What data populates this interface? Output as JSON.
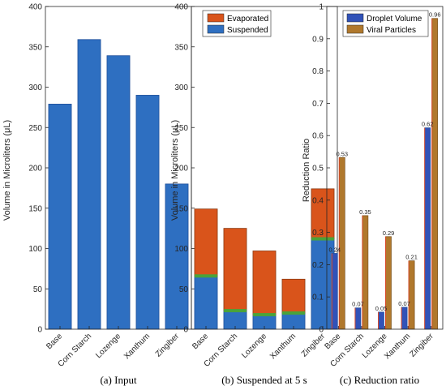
{
  "colors": {
    "blue": "#2e6fc1",
    "blue_edge": "#1f4f9a",
    "green": "#4aa33a",
    "evaporated": "#d9541b",
    "viral": "#b0782c",
    "droplet": "#3152b8",
    "viral_edge": "#7a5320"
  },
  "chart_data": [
    {
      "type": "bar",
      "categories": [
        "Base",
        "Corn Starch",
        "Lozenge",
        "Xanthum",
        "Zingiber"
      ],
      "values": [
        279,
        359,
        339,
        290,
        180
      ],
      "ylabel": "Volume in Microliters (μL)",
      "ylim": [
        0,
        400
      ],
      "yticks": [
        "0",
        "50",
        "100",
        "150",
        "200",
        "250",
        "300",
        "350",
        "400"
      ],
      "caption": "(a) Input"
    },
    {
      "type": "stacked-bar",
      "categories": [
        "Base",
        "Corn Starch",
        "Lozenge",
        "Xanthum",
        "Zingiber"
      ],
      "series": [
        {
          "name": "Suspended",
          "values": [
            66,
            23,
            18,
            20,
            112
          ]
        },
        {
          "name": "Evaporated",
          "values": [
            83,
            102,
            79,
            42,
            62
          ]
        }
      ],
      "ylabel": "Volume in Microliters (μL)",
      "ylim": [
        0,
        400
      ],
      "yticks": [
        "0",
        "50",
        "100",
        "150",
        "200",
        "250",
        "300",
        "350",
        "400"
      ],
      "legend": "top-right",
      "caption": "(b) Suspended at 5 s"
    },
    {
      "type": "grouped-bar",
      "categories": [
        "Base",
        "Corn Starch",
        "Lozenge",
        "Xanthum",
        "Zingiber"
      ],
      "series": [
        {
          "name": "Droplet Volume",
          "values": [
            0.235,
            0.066,
            0.053,
            0.068,
            0.624
          ],
          "labels": [
            "0.24",
            "0.07",
            "0.05",
            "0.07",
            "0.62"
          ]
        },
        {
          "name": "Viral Particles",
          "values": [
            0.532,
            0.352,
            0.287,
            0.212,
            0.963
          ],
          "labels": [
            "0.53",
            "0.35",
            "0.29",
            "0.21",
            "0.96"
          ]
        }
      ],
      "ylabel": "Reduction Ratio",
      "ylim": [
        0,
        1
      ],
      "yticks": [
        "0",
        "0.1",
        "0.2",
        "0.3",
        "0.4",
        "0.5",
        "0.6",
        "0.7",
        "0.8",
        "0.9",
        "1"
      ],
      "legend": "top-left",
      "caption": "(c) Reduction ratio"
    }
  ]
}
